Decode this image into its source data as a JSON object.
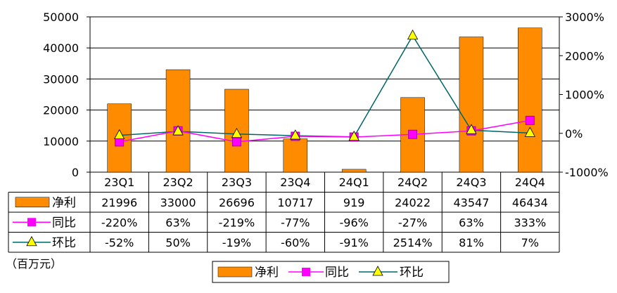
{
  "chart_data": {
    "type": "bar",
    "categories": [
      "23Q1",
      "23Q2",
      "23Q3",
      "23Q4",
      "24Q1",
      "24Q2",
      "24Q3",
      "24Q4"
    ],
    "series": [
      {
        "name": "净利",
        "kind": "bar",
        "axis": "left",
        "color": "#FF8C00",
        "values": [
          21996,
          33000,
          26696,
          10717,
          919,
          24022,
          43547,
          46434
        ]
      },
      {
        "name": "同比",
        "kind": "line",
        "axis": "right",
        "color": "#FF00FF",
        "marker": "square",
        "values": [
          -220,
          63,
          -219,
          -77,
          -96,
          -27,
          63,
          333
        ]
      },
      {
        "name": "环比",
        "kind": "line",
        "axis": "right",
        "color": "#006666",
        "marker": "triangle",
        "marker_color": "#FFFF00",
        "values": [
          -52,
          50,
          -19,
          -60,
          -91,
          2514,
          81,
          7
        ]
      }
    ],
    "table_rows": [
      {
        "label": "净利",
        "cells": [
          "21996",
          "33000",
          "26696",
          "10717",
          "919",
          "24022",
          "43547",
          "46434"
        ]
      },
      {
        "label": "同比",
        "cells": [
          "-220%",
          "63%",
          "-219%",
          "-77%",
          "-96%",
          "-27%",
          "63%",
          "333%"
        ]
      },
      {
        "label": "环比",
        "cells": [
          "-52%",
          "50%",
          "-19%",
          "-60%",
          "-91%",
          "2514%",
          "81%",
          "7%"
        ]
      }
    ],
    "y_left": {
      "min": 0,
      "max": 50000,
      "ticks": [
        "0",
        "10000",
        "20000",
        "30000",
        "40000",
        "50000"
      ]
    },
    "y_right": {
      "min": -1000,
      "max": 3000,
      "ticks": [
        "-1000%",
        "0%",
        "1000%",
        "2000%",
        "3000%"
      ]
    },
    "unit_label": "（百万元）",
    "legend": [
      "净利",
      "同比",
      "环比"
    ],
    "legend_position": "bottom",
    "grid": true
  }
}
